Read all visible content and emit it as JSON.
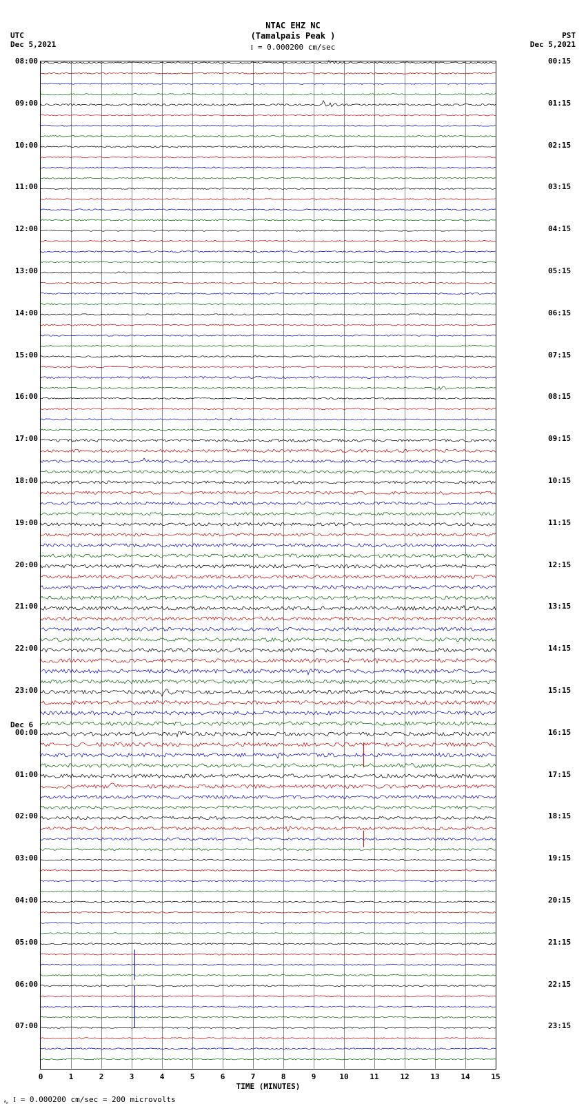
{
  "header": {
    "station": "NTAC EHZ NC",
    "location": "(Tamalpais Peak )",
    "scale_bar": "= 0.000200 cm/sec"
  },
  "timezone_left": "UTC",
  "date_left": "Dec 5,2021",
  "timezone_right": "PST",
  "date_right": "Dec 5,2021",
  "footer": "= 0.000200 cm/sec =    200 microvolts",
  "plot": {
    "x_axis_label": "TIME (MINUTES)",
    "x_ticks": [
      0,
      1,
      2,
      3,
      4,
      5,
      6,
      7,
      8,
      9,
      10,
      11,
      12,
      13,
      14,
      15
    ],
    "grid_color": "#888888",
    "background": "#ffffff",
    "trace_colors": [
      "#000000",
      "#cc0000",
      "#0000cc",
      "#006600"
    ],
    "row_height": 15.2,
    "n_rows": 96,
    "left_hour_labels": [
      {
        "row": 0,
        "text": "08:00"
      },
      {
        "row": 4,
        "text": "09:00"
      },
      {
        "row": 8,
        "text": "10:00"
      },
      {
        "row": 12,
        "text": "11:00"
      },
      {
        "row": 16,
        "text": "12:00"
      },
      {
        "row": 20,
        "text": "13:00"
      },
      {
        "row": 24,
        "text": "14:00"
      },
      {
        "row": 28,
        "text": "15:00"
      },
      {
        "row": 32,
        "text": "16:00"
      },
      {
        "row": 36,
        "text": "17:00"
      },
      {
        "row": 40,
        "text": "18:00"
      },
      {
        "row": 44,
        "text": "19:00"
      },
      {
        "row": 48,
        "text": "20:00"
      },
      {
        "row": 52,
        "text": "21:00"
      },
      {
        "row": 56,
        "text": "22:00"
      },
      {
        "row": 60,
        "text": "23:00"
      },
      {
        "row": 64,
        "text": "00:00"
      },
      {
        "row": 68,
        "text": "01:00"
      },
      {
        "row": 72,
        "text": "02:00"
      },
      {
        "row": 76,
        "text": "03:00"
      },
      {
        "row": 80,
        "text": "04:00"
      },
      {
        "row": 84,
        "text": "05:00"
      },
      {
        "row": 88,
        "text": "06:00"
      },
      {
        "row": 92,
        "text": "07:00"
      }
    ],
    "left_date_label": {
      "row": 63,
      "text": "Dec 6"
    },
    "right_hour_labels": [
      {
        "row": 0,
        "text": "00:15"
      },
      {
        "row": 4,
        "text": "01:15"
      },
      {
        "row": 8,
        "text": "02:15"
      },
      {
        "row": 12,
        "text": "03:15"
      },
      {
        "row": 16,
        "text": "04:15"
      },
      {
        "row": 20,
        "text": "05:15"
      },
      {
        "row": 24,
        "text": "06:15"
      },
      {
        "row": 28,
        "text": "07:15"
      },
      {
        "row": 32,
        "text": "08:15"
      },
      {
        "row": 36,
        "text": "09:15"
      },
      {
        "row": 40,
        "text": "10:15"
      },
      {
        "row": 44,
        "text": "11:15"
      },
      {
        "row": 48,
        "text": "12:15"
      },
      {
        "row": 52,
        "text": "13:15"
      },
      {
        "row": 56,
        "text": "14:15"
      },
      {
        "row": 60,
        "text": "15:15"
      },
      {
        "row": 64,
        "text": "16:15"
      },
      {
        "row": 68,
        "text": "17:15"
      },
      {
        "row": 72,
        "text": "18:15"
      },
      {
        "row": 76,
        "text": "19:15"
      },
      {
        "row": 80,
        "text": "20:15"
      },
      {
        "row": 84,
        "text": "21:15"
      },
      {
        "row": 88,
        "text": "22:15"
      },
      {
        "row": 92,
        "text": "23:15"
      }
    ],
    "noise_amplitude_base": 1.0,
    "noise_amplitude_rows": {
      "0": 1.2,
      "4": 1.3,
      "30": 1.5,
      "36": 2.0,
      "37": 2.2,
      "38": 2.0,
      "39": 2.0,
      "40": 2.0,
      "41": 2.2,
      "42": 2.0,
      "43": 2.0,
      "44": 2.2,
      "45": 2.2,
      "46": 2.5,
      "47": 2.5,
      "48": 2.5,
      "49": 2.5,
      "50": 2.5,
      "51": 2.5,
      "52": 2.8,
      "53": 2.5,
      "54": 2.5,
      "55": 2.5,
      "56": 2.8,
      "57": 2.8,
      "58": 2.8,
      "59": 2.8,
      "60": 2.8,
      "61": 2.8,
      "62": 2.8,
      "63": 2.8,
      "64": 2.8,
      "65": 2.8,
      "66": 2.8,
      "67": 2.8,
      "68": 2.8,
      "69": 2.8,
      "70": 2.5,
      "71": 2.2,
      "72": 2.2,
      "73": 2.2,
      "74": 1.8,
      "75": 1.5
    },
    "events": [
      {
        "row": 0,
        "x_min": 9.5,
        "width_min": 0.6,
        "amp": 4
      },
      {
        "row": 4,
        "x_min": 9.3,
        "width_min": 0.8,
        "amp": 5
      },
      {
        "row": 28,
        "x_min": 3.05,
        "width_min": 0.1,
        "amp": 3
      },
      {
        "row": 31,
        "x_min": 13.0,
        "width_min": 0.7,
        "amp": 4
      },
      {
        "row": 34,
        "x_min": 6.2,
        "width_min": 0.2,
        "amp": 3
      },
      {
        "row": 38,
        "x_min": 3.4,
        "width_min": 0.2,
        "amp": 3
      },
      {
        "row": 52,
        "x_min": 13.8,
        "width_min": 0.5,
        "amp": 4
      },
      {
        "row": 57,
        "x_min": 10.8,
        "width_min": 0.5,
        "amp": 4
      },
      {
        "row": 58,
        "x_min": 8.8,
        "width_min": 0.4,
        "amp": 4
      },
      {
        "row": 60,
        "x_min": 4.0,
        "width_min": 0.5,
        "amp": 4
      },
      {
        "row": 64,
        "x_min": 4.5,
        "width_min": 0.4,
        "amp": 4
      },
      {
        "row": 66,
        "x_min": 7.8,
        "width_min": 0.5,
        "amp": 4
      },
      {
        "row": 68,
        "x_min": 4.2,
        "width_min": 0.3,
        "amp": 4
      },
      {
        "row": 69,
        "x_min": 2.3,
        "width_min": 0.5,
        "amp": 4
      },
      {
        "row": 73,
        "x_min": 8.0,
        "width_min": 0.5,
        "amp": 4
      }
    ],
    "spikes": [
      {
        "row": 66,
        "x_min": 10.65,
        "amp": 18,
        "color": "#cc0000"
      },
      {
        "row": 74,
        "x_min": 10.65,
        "amp": 12,
        "color": "#cc0000"
      },
      {
        "row": 86,
        "x_min": 3.1,
        "amp": 22,
        "color": "#0000cc"
      },
      {
        "row": 90,
        "x_min": 3.1,
        "amp": 30,
        "color": "#0000cc"
      }
    ]
  }
}
